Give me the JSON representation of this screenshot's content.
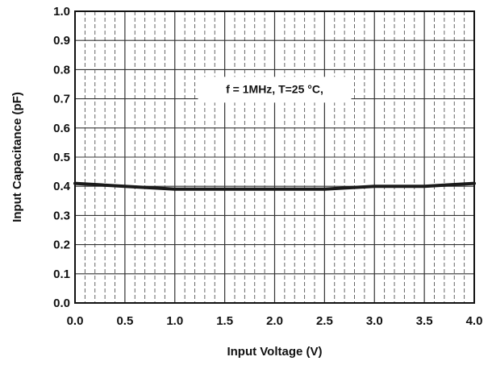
{
  "chart_data": {
    "type": "line",
    "title": "",
    "xlabel": "Input Voltage (V)",
    "ylabel": "Input Capacitance (pF)",
    "xlim": [
      0.0,
      4.0
    ],
    "ylim": [
      0.0,
      1.0
    ],
    "x_ticks": [
      "0.0",
      "0.5",
      "1.0",
      "1.5",
      "2.0",
      "2.5",
      "3.0",
      "3.5",
      "4.0"
    ],
    "y_ticks": [
      "0.0",
      "0.1",
      "0.2",
      "0.3",
      "0.4",
      "0.5",
      "0.6",
      "0.7",
      "0.8",
      "0.9",
      "1.0"
    ],
    "grid": true,
    "annotation": {
      "text": "f = 1MHz, T=25 °C,",
      "x": 2.0,
      "y": 0.72
    },
    "series": [
      {
        "x": [
          0.0,
          0.25,
          0.5,
          0.75,
          1.0,
          1.25,
          1.5,
          1.75,
          2.0,
          2.25,
          2.5,
          2.75,
          3.0,
          3.25,
          3.5,
          3.75,
          4.0
        ],
        "y": [
          0.41,
          0.405,
          0.4,
          0.395,
          0.39,
          0.39,
          0.39,
          0.39,
          0.39,
          0.39,
          0.39,
          0.395,
          0.4,
          0.4,
          0.4,
          0.405,
          0.41
        ]
      }
    ],
    "colors": {
      "line": "#1a1a1a",
      "grid": "#555555",
      "axis": "#111111"
    }
  }
}
